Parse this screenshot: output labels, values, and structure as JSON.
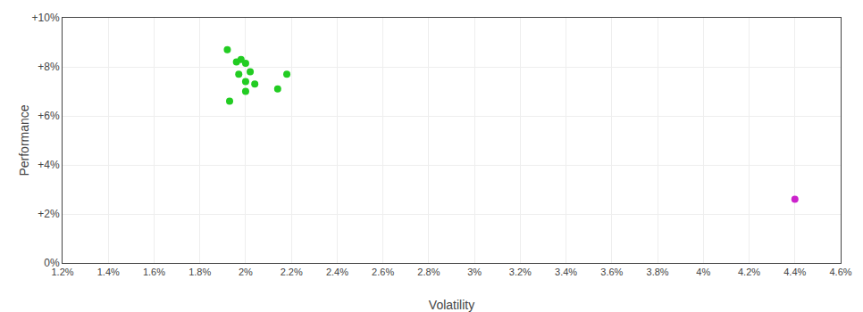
{
  "chart_data": {
    "type": "scatter",
    "xlabel": "Volatility",
    "ylabel": "Performance",
    "series": [
      {
        "color": "#22cc22",
        "x": [
          0.0192,
          0.0196,
          0.0198,
          0.02,
          0.0197,
          0.0202,
          0.0218,
          0.02,
          0.0204,
          0.02,
          0.0193,
          0.0214
        ],
        "values": [
          0.087,
          0.082,
          0.083,
          0.0815,
          0.077,
          0.078,
          0.077,
          0.074,
          0.073,
          0.07,
          0.066,
          0.071
        ]
      },
      {
        "color": "#cc22cc",
        "x": [
          0.044
        ],
        "values": [
          0.026
        ]
      }
    ],
    "xlim": [
      0.012,
      0.046
    ],
    "ylim": [
      0.0,
      0.1
    ],
    "xticks": [
      {
        "value": 0.012,
        "label": "1.2%"
      },
      {
        "value": 0.014,
        "label": "1.4%"
      },
      {
        "value": 0.016,
        "label": "1.6%"
      },
      {
        "value": 0.018,
        "label": "1.8%"
      },
      {
        "value": 0.02,
        "label": "2%"
      },
      {
        "value": 0.022,
        "label": "2.2%"
      },
      {
        "value": 0.024,
        "label": "2.4%"
      },
      {
        "value": 0.026,
        "label": "2.6%"
      },
      {
        "value": 0.028,
        "label": "2.8%"
      },
      {
        "value": 0.03,
        "label": "3%"
      },
      {
        "value": 0.032,
        "label": "3.2%"
      },
      {
        "value": 0.034,
        "label": "3.4%"
      },
      {
        "value": 0.036,
        "label": "3.6%"
      },
      {
        "value": 0.038,
        "label": "3.8%"
      },
      {
        "value": 0.04,
        "label": "4%"
      },
      {
        "value": 0.042,
        "label": "4.2%"
      },
      {
        "value": 0.044,
        "label": "4.4%"
      },
      {
        "value": 0.046,
        "label": "4.6%"
      }
    ],
    "yticks": [
      {
        "value": 0.0,
        "label": "0%"
      },
      {
        "value": 0.02,
        "label": "+2%"
      },
      {
        "value": 0.04,
        "label": "+4%"
      },
      {
        "value": 0.06,
        "label": "+6%"
      },
      {
        "value": 0.08,
        "label": "+8%"
      },
      {
        "value": 0.1,
        "label": "+10%"
      }
    ],
    "grid": true
  }
}
